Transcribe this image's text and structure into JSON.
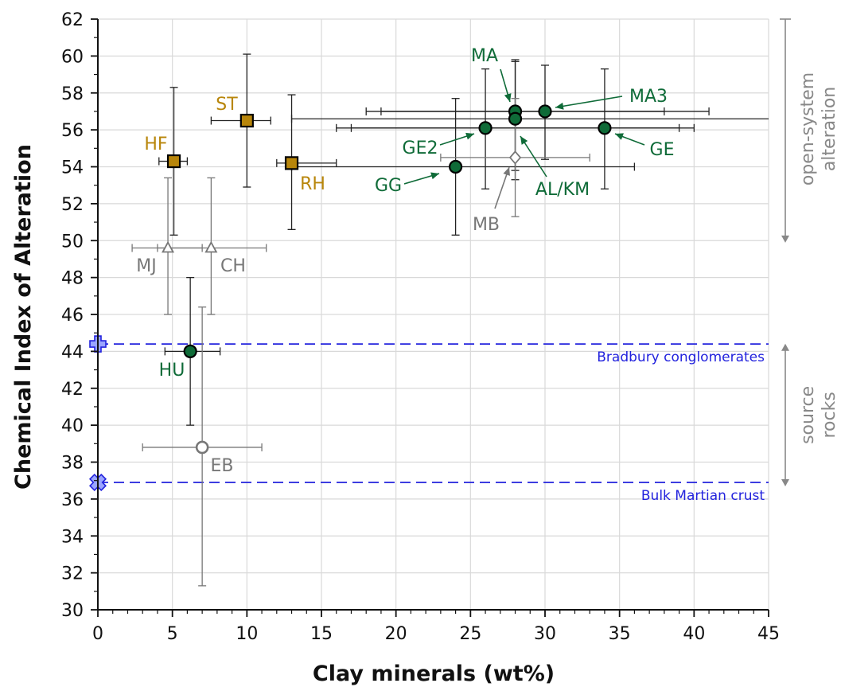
{
  "chart_data": {
    "type": "scatter",
    "xlabel": "Clay minerals (wt%)",
    "ylabel": "Chemical Index of Alteration",
    "xlim": [
      0,
      45
    ],
    "ylim": [
      30,
      62
    ],
    "xticks": [
      0,
      5,
      10,
      15,
      20,
      25,
      30,
      35,
      40,
      45
    ],
    "yticks": [
      30,
      32,
      34,
      36,
      38,
      40,
      42,
      44,
      46,
      48,
      50,
      52,
      54,
      56,
      58,
      60,
      62
    ],
    "grid": true,
    "colors": {
      "green": "#0f6b38",
      "gold": "#b8860b",
      "gray": "#777777",
      "blue": "#2222dd",
      "reference_marker": "#9aa5ff"
    },
    "points": [
      {
        "label": "HF",
        "x": 5.1,
        "y": 54.3,
        "xerr": [
          4.1,
          6.0
        ],
        "yerr": [
          50.3,
          58.3
        ],
        "marker": "square",
        "color": "gold"
      },
      {
        "label": "ST",
        "x": 10.0,
        "y": 56.5,
        "xerr": [
          7.6,
          11.6
        ],
        "yerr": [
          52.9,
          60.1
        ],
        "marker": "square",
        "color": "gold"
      },
      {
        "label": "RH",
        "x": 13.0,
        "y": 54.2,
        "xerr": [
          12.0,
          16.0
        ],
        "yerr": [
          50.6,
          57.9
        ],
        "marker": "square",
        "color": "gold"
      },
      {
        "label": "MJ",
        "x": 4.7,
        "y": 49.6,
        "xerr": [
          2.3,
          7.0
        ],
        "yerr": [
          46.0,
          53.4
        ],
        "marker": "triangle-open",
        "color": "gray"
      },
      {
        "label": "CH",
        "x": 7.6,
        "y": 49.6,
        "xerr": [
          4.0,
          11.3
        ],
        "yerr": [
          46.0,
          53.4
        ],
        "marker": "triangle-open",
        "color": "gray"
      },
      {
        "label": "HU",
        "x": 6.2,
        "y": 44.0,
        "xerr": [
          4.5,
          8.2
        ],
        "yerr": [
          40.0,
          48.0
        ],
        "marker": "circle",
        "color": "green"
      },
      {
        "label": "EB",
        "x": 7.0,
        "y": 38.8,
        "xerr": [
          3.0,
          11.0
        ],
        "yerr": [
          31.3,
          46.4
        ],
        "marker": "circle-open",
        "color": "gray"
      },
      {
        "label": "GG",
        "x": 24.0,
        "y": 54.0,
        "xerr": [
          13.0,
          36.0
        ],
        "yerr": [
          50.3,
          57.7
        ],
        "marker": "circle",
        "color": "green"
      },
      {
        "label": "GE2",
        "x": 26.0,
        "y": 56.1,
        "xerr": [
          16.0,
          40.0
        ],
        "yerr": [
          52.8,
          59.3
        ],
        "marker": "circle",
        "color": "green"
      },
      {
        "label": "MA",
        "x": 28.0,
        "y": 57.0,
        "xerr": [
          18.0,
          38.0
        ],
        "yerr": [
          53.8,
          59.7
        ],
        "marker": "circle",
        "color": "green"
      },
      {
        "label": "AL/KM",
        "x": 28.0,
        "y": 56.6,
        "xerr": [
          13.0,
          45.0
        ],
        "yerr": [
          53.3,
          59.8
        ],
        "marker": "circle",
        "color": "green"
      },
      {
        "label": "MA3",
        "x": 30.0,
        "y": 57.0,
        "xerr": [
          19.0,
          41.0
        ],
        "yerr": [
          54.4,
          59.5
        ],
        "marker": "circle",
        "color": "green"
      },
      {
        "label": "GE",
        "x": 34.0,
        "y": 56.1,
        "xerr": [
          17.0,
          39.0
        ],
        "yerr": [
          52.8,
          59.3
        ],
        "marker": "circle",
        "color": "green"
      },
      {
        "label": "MB",
        "x": 28.0,
        "y": 54.5,
        "xerr": [
          23.0,
          33.0
        ],
        "yerr": [
          51.3,
          57.7
        ],
        "marker": "diamond-open",
        "color": "gray"
      }
    ],
    "reference_lines": [
      {
        "label": "Bradbury conglomerates",
        "y": 44.4,
        "marker": "plus"
      },
      {
        "label": "Bulk Martian crust",
        "y": 36.9,
        "marker": "cross"
      }
    ],
    "side_annotations": [
      {
        "lines": [
          "open-system",
          "alteration"
        ],
        "y_range": [
          50.1,
          62
        ]
      },
      {
        "lines": [
          "source",
          "rocks"
        ],
        "y_range": [
          36.9,
          44.2
        ]
      }
    ]
  }
}
